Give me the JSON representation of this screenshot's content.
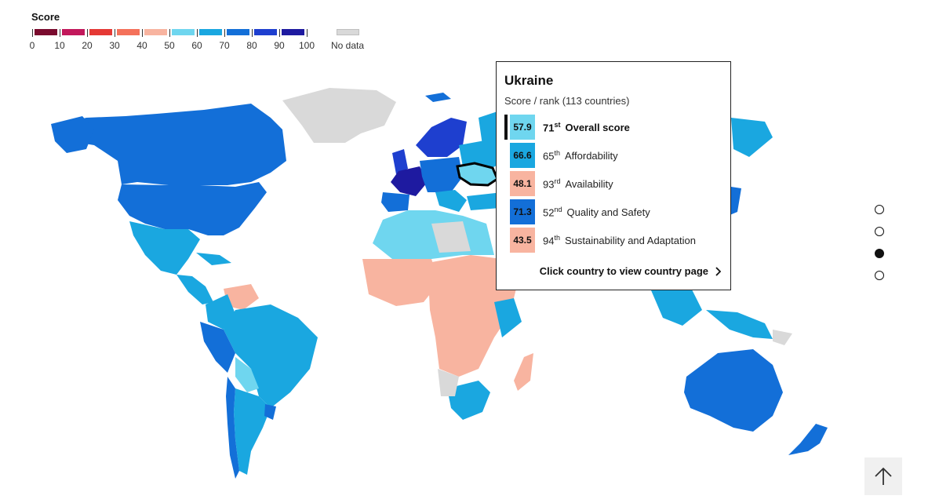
{
  "legend": {
    "title": "Score",
    "ticks": [
      "0",
      "10",
      "20",
      "30",
      "40",
      "50",
      "60",
      "70",
      "80",
      "90",
      "100"
    ],
    "colors": [
      "#7a0b2e",
      "#c2185b",
      "#e53935",
      "#f4715a",
      "#f8b4a0",
      "#6fd6ef",
      "#1aa7e0",
      "#136fd8",
      "#1e3fcf",
      "#1e1aa0"
    ],
    "nodata_label": "No data",
    "nodata_color": "#d9d9d9"
  },
  "tooltip": {
    "country": "Ukraine",
    "subtitle": "Score / rank (113 countries)",
    "rows": [
      {
        "score": "57.9",
        "rank_num": "71",
        "rank_suffix": "st",
        "metric": "Overall score",
        "color": "#6fd6ef",
        "bold": true
      },
      {
        "score": "66.6",
        "rank_num": "65",
        "rank_suffix": "th",
        "metric": "Affordability",
        "color": "#1aa7e0",
        "bold": false
      },
      {
        "score": "48.1",
        "rank_num": "93",
        "rank_suffix": "rd",
        "metric": "Availability",
        "color": "#f8b4a0",
        "bold": false
      },
      {
        "score": "71.3",
        "rank_num": "52",
        "rank_suffix": "nd",
        "metric": "Quality and Safety",
        "color": "#136fd8",
        "bold": false
      },
      {
        "score": "43.5",
        "rank_num": "94",
        "rank_suffix": "th",
        "metric": "Sustainability and Adaptation",
        "color": "#f8b4a0",
        "bold": false
      }
    ],
    "link_label": "Click country to view country page"
  },
  "slides": {
    "count": 4,
    "active_index": 2
  },
  "icons": {
    "back_to_top": "arrow-up-icon",
    "link_chevron": "chevron-right-icon"
  }
}
